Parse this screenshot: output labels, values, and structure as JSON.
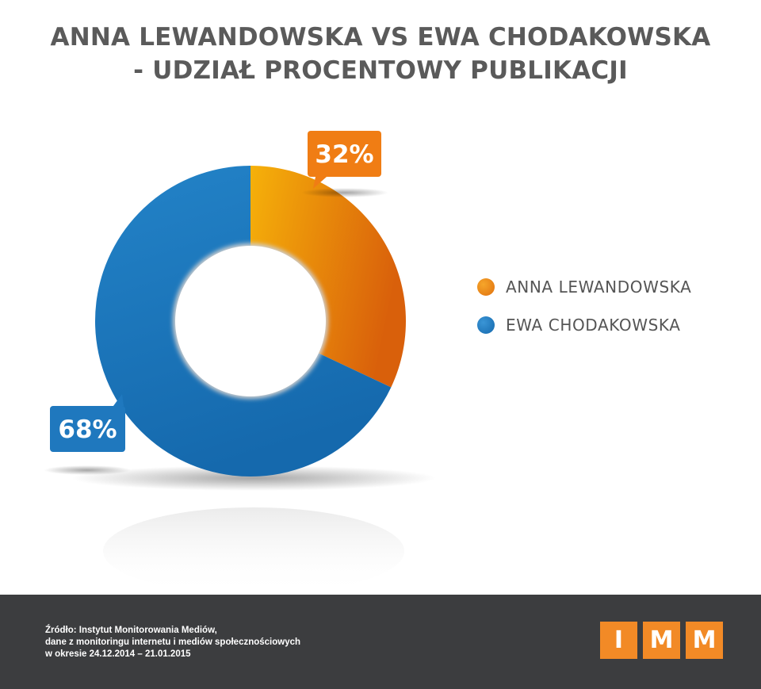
{
  "title_lines": [
    "ANNA LEWANDOWSKA VS EWA CHODAKOWSKA",
    "- UDZIAŁ PROCENTOWY PUBLIKACJI"
  ],
  "chart_data": {
    "type": "pie",
    "title": "ANNA LEWANDOWSKA VS EWA CHODAKOWSKA - UDZIAŁ PROCENTOWY PUBLIKACJI",
    "categories": [
      "ANNA LEWANDOWSKA",
      "EWA CHODAKOWSKA"
    ],
    "values": [
      32,
      68
    ],
    "data_labels": [
      "32%",
      "68%"
    ],
    "colors": [
      "#f08a1c",
      "#1f7cc1"
    ],
    "legend_position": "right",
    "donut": true
  },
  "footer": {
    "source_lines": [
      "Źródło: Instytut Monitorowania Mediów,",
      "dane z monitoringu internetu i mediów społecznościowych",
      "w okresie 24.12.2014 – 21.01.2015"
    ],
    "logo_letters": [
      "I",
      "M",
      "M"
    ],
    "logo_color": "#f28a26"
  }
}
